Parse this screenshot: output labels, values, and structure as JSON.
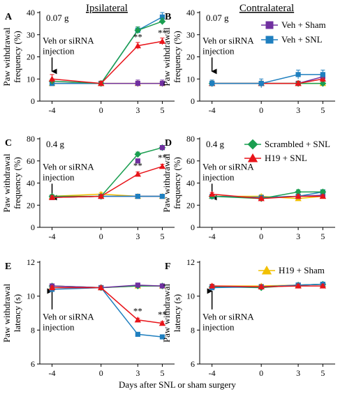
{
  "figure": {
    "col_titles": [
      "Ipsilateral",
      "Contralateral"
    ],
    "xlabel": "Days after SNL or sham surgery",
    "annotation": [
      "Veh or siRNA",
      "injection"
    ]
  },
  "legends": {
    "veh_sham": "Veh + Sham",
    "veh_snl": "Veh + SNL",
    "scr_snl": "Scrambled + SNL",
    "h19_snl": "H19 + SNL",
    "h19_sham": "H19 + Sham"
  },
  "series_colors": {
    "veh_sham": "#7030a0",
    "veh_snl": "#1f7fbf",
    "scr_snl": "#1a9e50",
    "h19_snl": "#e8141a",
    "h19_sham": "#f2c000"
  },
  "chart_data": [
    {
      "panel": "A",
      "type": "line",
      "subtitle": "0.07 g",
      "ylabel": [
        "Paw withdrawal",
        "frequency (%)"
      ],
      "x": [
        -4,
        0,
        3,
        5
      ],
      "ylim": [
        0,
        40
      ],
      "yticks": [
        0,
        10,
        20,
        30,
        40
      ],
      "series": [
        {
          "id": "h19_sham",
          "values": [
            8,
            8,
            8,
            8
          ],
          "err": [
            1,
            1,
            1,
            1
          ]
        },
        {
          "id": "veh_sham",
          "values": [
            8,
            8,
            8,
            8
          ],
          "err": [
            1,
            1,
            1.5,
            1.5
          ]
        },
        {
          "id": "veh_snl",
          "values": [
            8,
            8,
            32,
            38
          ],
          "err": [
            1,
            1,
            1.5,
            2
          ]
        },
        {
          "id": "scr_snl",
          "values": [
            9,
            8,
            32,
            36
          ],
          "err": [
            1,
            1,
            1.5,
            1.5
          ]
        },
        {
          "id": "h19_snl",
          "values": [
            10,
            8,
            25,
            27
          ],
          "err": [
            2,
            1,
            1.5,
            1.5
          ]
        }
      ],
      "sig": [
        {
          "x": 3,
          "y": 25,
          "text": "**"
        },
        {
          "x": 5,
          "y": 27,
          "text": "**"
        }
      ]
    },
    {
      "panel": "B",
      "type": "line",
      "subtitle": "0.07 g",
      "ylabel": [
        "Paw withdrawal",
        "frequency (%)"
      ],
      "x": [
        -4,
        0,
        3,
        5
      ],
      "ylim": [
        0,
        40
      ],
      "yticks": [
        0,
        10,
        20,
        30,
        40
      ],
      "series": [
        {
          "id": "h19_sham",
          "values": [
            8,
            8,
            8,
            8
          ],
          "err": [
            1,
            1,
            1,
            1
          ]
        },
        {
          "id": "veh_sham",
          "values": [
            8,
            8,
            8,
            11
          ],
          "err": [
            1,
            1,
            1,
            1.5
          ]
        },
        {
          "id": "scr_snl",
          "values": [
            8,
            8,
            8,
            8
          ],
          "err": [
            1,
            1,
            1,
            1
          ]
        },
        {
          "id": "h19_snl",
          "values": [
            8,
            8,
            8,
            10
          ],
          "err": [
            1,
            1,
            1,
            1.5
          ]
        },
        {
          "id": "veh_snl",
          "values": [
            8,
            8,
            12,
            12
          ],
          "err": [
            1.5,
            2,
            2,
            2
          ]
        }
      ],
      "sig": []
    },
    {
      "panel": "C",
      "type": "line",
      "subtitle": "0.4 g",
      "ylabel": [
        "Paw withdrawal",
        "frequency (%)"
      ],
      "x": [
        -4,
        0,
        3,
        5
      ],
      "ylim": [
        0,
        80
      ],
      "yticks": [
        0,
        20,
        40,
        60,
        80
      ],
      "series": [
        {
          "id": "h19_sham",
          "values": [
            28,
            30,
            28,
            28
          ],
          "err": [
            1.5,
            1.5,
            1.5,
            1.5
          ]
        },
        {
          "id": "veh_sham",
          "values": [
            27,
            28,
            28,
            28
          ],
          "err": [
            1.5,
            1.5,
            1.5,
            1.5
          ]
        },
        {
          "id": "veh_snl",
          "values": [
            27,
            28,
            28,
            28
          ],
          "err": [
            1.5,
            1.5,
            1.5,
            1.5
          ]
        },
        {
          "id": "scr_snl",
          "values": [
            28,
            28,
            66,
            72
          ],
          "err": [
            1.5,
            1.5,
            2,
            2
          ]
        },
        {
          "id": "h19_snl",
          "values": [
            27,
            28,
            48,
            55
          ],
          "err": [
            1.5,
            1.5,
            2,
            2
          ]
        }
      ],
      "markers": [
        {
          "id": "veh_sham",
          "x": 3,
          "y": 60
        },
        {
          "id": "veh_sham",
          "x": 5,
          "y": 72
        }
      ],
      "sig": [
        {
          "x": 3,
          "y": 48,
          "text": "**"
        },
        {
          "x": 5,
          "y": 55,
          "text": "**"
        }
      ]
    },
    {
      "panel": "D",
      "type": "line",
      "subtitle": "0.4 g",
      "ylabel": [
        "Paw withdrawal",
        "frequency (%)"
      ],
      "x": [
        -4,
        0,
        3,
        5
      ],
      "ylim": [
        0,
        80
      ],
      "yticks": [
        0,
        20,
        40,
        60,
        80
      ],
      "series": [
        {
          "id": "h19_sham",
          "values": [
            28,
            28,
            26,
            28
          ],
          "err": [
            1.5,
            1.5,
            1.5,
            1.5
          ]
        },
        {
          "id": "veh_sham",
          "values": [
            28,
            27,
            28,
            29
          ],
          "err": [
            1.5,
            1.5,
            1.5,
            1.5
          ]
        },
        {
          "id": "veh_snl",
          "values": [
            28,
            27,
            28,
            32
          ],
          "err": [
            1.5,
            1.5,
            1.5,
            1.5
          ]
        },
        {
          "id": "scr_snl",
          "values": [
            28,
            26,
            32,
            32
          ],
          "err": [
            1.5,
            1.5,
            2,
            2
          ]
        },
        {
          "id": "h19_snl",
          "values": [
            30,
            26,
            28,
            28
          ],
          "err": [
            1.5,
            1.5,
            1.5,
            1.5
          ]
        }
      ],
      "sig": []
    },
    {
      "panel": "E",
      "type": "line",
      "ylabel": [
        "Paw withdrawal",
        "latency (s)"
      ],
      "x": [
        -4,
        0,
        3,
        5
      ],
      "ylim": [
        6,
        12
      ],
      "yticks": [
        6,
        8,
        10,
        12
      ],
      "series": [
        {
          "id": "h19_sham",
          "values": [
            10.6,
            10.5,
            10.6,
            10.6
          ],
          "err": [
            0.1,
            0.1,
            0.1,
            0.1
          ]
        },
        {
          "id": "scr_snl",
          "values": [
            10.6,
            10.5,
            10.6,
            10.6
          ],
          "err": [
            0.1,
            0.1,
            0.1,
            0.1
          ]
        },
        {
          "id": "veh_sham",
          "values": [
            10.6,
            10.5,
            10.65,
            10.6
          ],
          "err": [
            0.1,
            0.1,
            0.1,
            0.1
          ]
        },
        {
          "id": "veh_snl",
          "values": [
            10.4,
            10.5,
            7.75,
            7.6
          ],
          "err": [
            0.1,
            0.1,
            0.1,
            0.1
          ]
        },
        {
          "id": "h19_snl",
          "values": [
            10.5,
            10.5,
            8.6,
            8.4
          ],
          "err": [
            0.1,
            0.1,
            0.1,
            0.1
          ]
        }
      ],
      "sig": [
        {
          "x": 3,
          "y": 8.6,
          "text": "**"
        },
        {
          "x": 5,
          "y": 8.4,
          "text": "**"
        }
      ]
    },
    {
      "panel": "F",
      "type": "line",
      "ylabel": [
        "Paw withdrawal",
        "latency (s)"
      ],
      "x": [
        -4,
        0,
        3,
        5
      ],
      "ylim": [
        6,
        12
      ],
      "yticks": [
        6,
        8,
        10,
        12
      ],
      "series": [
        {
          "id": "h19_sham",
          "values": [
            10.6,
            10.6,
            10.65,
            10.7
          ],
          "err": [
            0.1,
            0.1,
            0.1,
            0.1
          ]
        },
        {
          "id": "veh_sham",
          "values": [
            10.55,
            10.55,
            10.65,
            10.7
          ],
          "err": [
            0.1,
            0.1,
            0.1,
            0.1
          ]
        },
        {
          "id": "scr_snl",
          "values": [
            10.55,
            10.5,
            10.65,
            10.7
          ],
          "err": [
            0.1,
            0.1,
            0.1,
            0.1
          ]
        },
        {
          "id": "veh_snl",
          "values": [
            10.5,
            10.55,
            10.65,
            10.7
          ],
          "err": [
            0.1,
            0.1,
            0.1,
            0.1
          ]
        },
        {
          "id": "h19_snl",
          "values": [
            10.6,
            10.55,
            10.6,
            10.6
          ],
          "err": [
            0.1,
            0.1,
            0.1,
            0.1
          ]
        }
      ],
      "sig": []
    }
  ]
}
